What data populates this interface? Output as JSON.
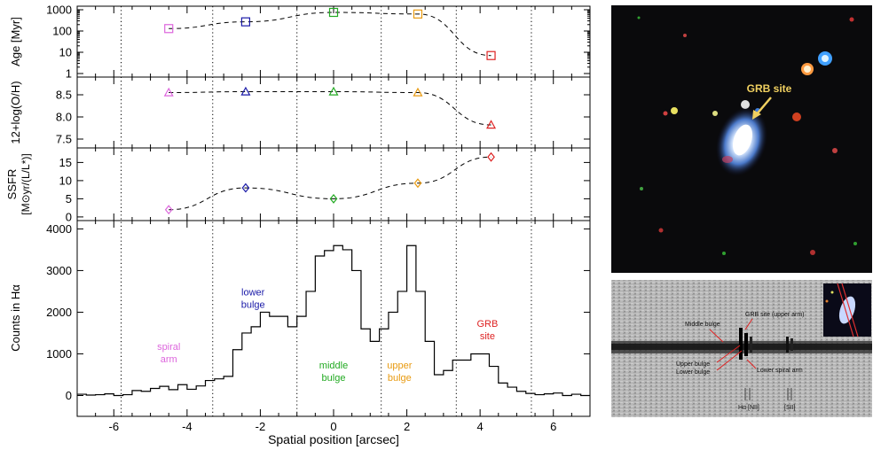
{
  "chart_data": [
    {
      "type": "scatter",
      "ylabel": "Age [Myr]",
      "log_scale": true,
      "ylim": [
        1,
        1000
      ],
      "y_ticks": [
        "1",
        "10",
        "100",
        "1000"
      ],
      "marker": "square",
      "points": [
        {
          "x": -4.5,
          "y": 130,
          "color": "#dd66dd"
        },
        {
          "x": -2.4,
          "y": 270,
          "color": "#1a1aa8"
        },
        {
          "x": 0.0,
          "y": 750,
          "color": "#22aa22"
        },
        {
          "x": 2.3,
          "y": 630,
          "color": "#e89a10"
        },
        {
          "x": 4.3,
          "y": 7,
          "color": "#dd2222"
        }
      ]
    },
    {
      "type": "scatter",
      "ylabel": "12+log(O/H)",
      "ylim": [
        7.3,
        8.9
      ],
      "y_ticks": [
        "7.5",
        "8.0",
        "8.5"
      ],
      "marker": "triangle",
      "points": [
        {
          "x": -4.5,
          "y": 8.55,
          "color": "#dd66dd"
        },
        {
          "x": -2.4,
          "y": 8.57,
          "color": "#1a1aa8"
        },
        {
          "x": 0.0,
          "y": 8.57,
          "color": "#22aa22"
        },
        {
          "x": 2.3,
          "y": 8.55,
          "color": "#e89a10"
        },
        {
          "x": 4.3,
          "y": 7.82,
          "color": "#dd2222"
        }
      ]
    },
    {
      "type": "scatter",
      "ylabel": "SSFR",
      "ylabel2": "[M⊙yr/(L/L*)]",
      "ylim": [
        -1,
        19
      ],
      "y_ticks": [
        "0",
        "5",
        "10",
        "15"
      ],
      "marker": "diamond",
      "points": [
        {
          "x": -4.5,
          "y": 2.0,
          "color": "#dd66dd"
        },
        {
          "x": -2.4,
          "y": 8.0,
          "color": "#1a1aa8"
        },
        {
          "x": 0.0,
          "y": 5.0,
          "color": "#22aa22"
        },
        {
          "x": 2.3,
          "y": 9.3,
          "color": "#e89a10"
        },
        {
          "x": 4.3,
          "y": 16.5,
          "color": "#dd2222"
        }
      ]
    },
    {
      "type": "line",
      "style": "step",
      "ylabel": "Counts in Hα",
      "xlabel": "Spatial position [arcsec]",
      "xlim": [
        -7,
        7
      ],
      "ylim": [
        -500,
        4200
      ],
      "x_ticks": [
        "-6",
        "-4",
        "-2",
        "0",
        "2",
        "4",
        "6"
      ],
      "y_ticks": [
        "0",
        "1000",
        "2000",
        "3000",
        "4000"
      ],
      "vertical_dotted_lines": [
        -5.8,
        -3.3,
        -1.0,
        1.3,
        3.35,
        5.4
      ],
      "x": [
        -7.0,
        -6.75,
        -6.5,
        -6.25,
        -6.0,
        -5.75,
        -5.5,
        -5.25,
        -5.0,
        -4.75,
        -4.5,
        -4.25,
        -4.0,
        -3.75,
        -3.5,
        -3.25,
        -3.0,
        -2.75,
        -2.5,
        -2.25,
        -2.0,
        -1.75,
        -1.5,
        -1.25,
        -1.0,
        -0.75,
        -0.5,
        -0.25,
        0.0,
        0.25,
        0.5,
        0.75,
        1.0,
        1.25,
        1.5,
        1.75,
        2.0,
        2.25,
        2.5,
        2.75,
        3.0,
        3.25,
        3.5,
        3.75,
        4.0,
        4.25,
        4.5,
        4.75,
        5.0,
        5.25,
        5.5,
        5.75,
        6.0,
        6.25,
        6.5,
        6.75
      ],
      "values": [
        30,
        10,
        20,
        40,
        0,
        20,
        120,
        100,
        170,
        220,
        140,
        260,
        150,
        230,
        360,
        400,
        460,
        1100,
        1500,
        1650,
        2000,
        1900,
        1900,
        1650,
        1900,
        2500,
        3350,
        3480,
        3600,
        3500,
        3000,
        1600,
        1300,
        1600,
        2000,
        2500,
        3600,
        2500,
        1300,
        500,
        600,
        850,
        850,
        1000,
        1000,
        700,
        300,
        200,
        100,
        50,
        20,
        40,
        60,
        0,
        30,
        0
      ],
      "annotations": [
        {
          "text": "spiral",
          "text2": "arm",
          "x": -4.5,
          "y": 1100,
          "color": "#dd66dd"
        },
        {
          "text": "lower",
          "text2": "bulge",
          "x": -2.2,
          "y": 2400,
          "color": "#1a1aa8"
        },
        {
          "text": "middle",
          "text2": "bulge",
          "x": 0.0,
          "y": 650,
          "color": "#22aa22"
        },
        {
          "text": "upper",
          "text2": "bulge",
          "x": 1.8,
          "y": 650,
          "color": "#e89a10"
        },
        {
          "text": "GRB",
          "text2": "site",
          "x": 4.2,
          "y": 1650,
          "color": "#dd2222"
        }
      ]
    }
  ],
  "image_top": {
    "label": "GRB site",
    "label_color": "#f0d060"
  },
  "image_bottom": {
    "labels": [
      "Middle bulge",
      "GRB site (upper arm)",
      "Upper bulge",
      "Lower bulge",
      "Lower spiral arm",
      "Hα [NII]",
      "[SII]"
    ]
  }
}
